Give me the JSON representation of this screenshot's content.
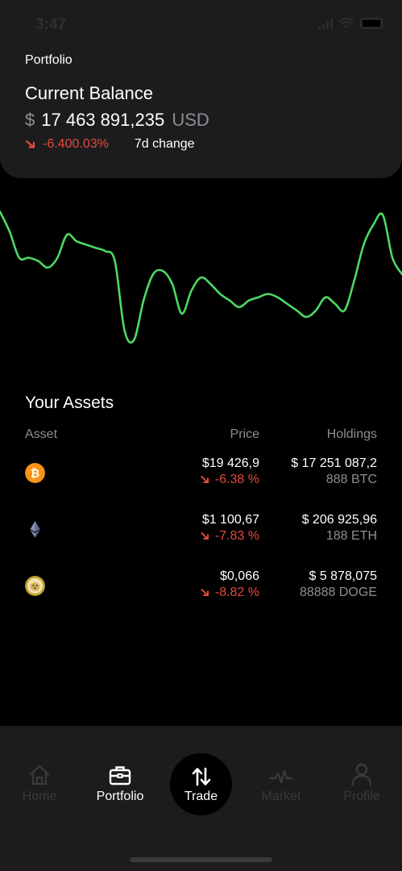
{
  "status_bar": {
    "time": "3:47"
  },
  "header": {
    "section": "Portfolio",
    "balance_title": "Current Balance",
    "currency_symbol": "$",
    "balance_value": "17 463 891,235",
    "balance_unit": "USD",
    "change_value": "-6.400.03%",
    "change_label": "7d change"
  },
  "chart_data": {
    "type": "line",
    "title": "",
    "xlabel": "",
    "ylabel": "",
    "color": "#4cd964",
    "series": [
      {
        "values": [
          94,
          88,
          80,
          80,
          79,
          77,
          80,
          87,
          85,
          84,
          83,
          82,
          79,
          58,
          55,
          67,
          75,
          76,
          72,
          63,
          70,
          74,
          72,
          69,
          67,
          65,
          67,
          68,
          69,
          68,
          66,
          64,
          62,
          64,
          68,
          66,
          64,
          73,
          84,
          90,
          93,
          80,
          75
        ]
      }
    ]
  },
  "assets": {
    "title": "Your Assets",
    "columns": {
      "asset": "Asset",
      "price": "Price",
      "holdings": "Holdings"
    },
    "rows": [
      {
        "icon": "bitcoin-icon",
        "color": "#f7931a",
        "price": "$19 426,9",
        "change": "-6.38 %",
        "holding_value": "$ 17 251 087,2",
        "holding_qty": "888 BTC"
      },
      {
        "icon": "ethereum-icon",
        "color": "#8a92b2",
        "price": "$1 100,67",
        "change": "-7.83 %",
        "holding_value": "$ 206 925,96",
        "holding_qty": "188 ETH"
      },
      {
        "icon": "dogecoin-icon",
        "color": "#c2a633",
        "price": "$0,066",
        "change": "-8.82 %",
        "holding_value": "$ 5 878,075",
        "holding_qty": "88888 DOGE"
      }
    ]
  },
  "tabs": [
    {
      "label": "Home",
      "icon": "home-icon",
      "active": false
    },
    {
      "label": "Portfolio",
      "icon": "briefcase-icon",
      "active": true
    },
    {
      "label": "Trade",
      "icon": "swap-arrows-icon",
      "active": true
    },
    {
      "label": "Market",
      "icon": "pulse-icon",
      "active": false
    },
    {
      "label": "Profile",
      "icon": "person-icon",
      "active": false
    }
  ],
  "colors": {
    "accent_negative": "#e5493b",
    "chart_line": "#4cd964",
    "card_bg": "#1c1c1e"
  }
}
